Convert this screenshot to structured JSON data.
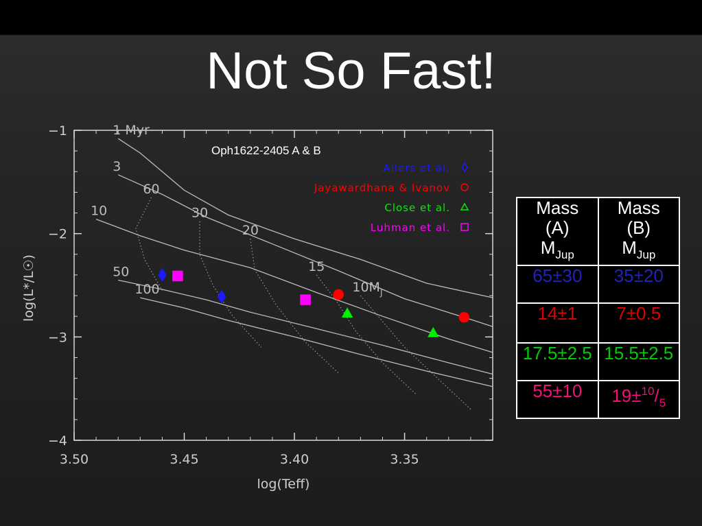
{
  "slide": {
    "title": "Not So Fast!"
  },
  "chart_data": {
    "type": "scatter",
    "title": "Oph1622-2405 A & B",
    "xlabel": "log(Teff)",
    "ylabel": "log(L*/L☉)",
    "xlim": [
      3.5,
      3.31
    ],
    "ylim": [
      -1,
      -4
    ],
    "x_ticks": [
      "3.50",
      "3.45",
      "3.40",
      "3.35"
    ],
    "y_ticks": [
      "−1",
      "−2",
      "−3",
      "−4"
    ],
    "legend_position": "top-right",
    "series": [
      {
        "name": "Allers et al.",
        "color": "#1a1aff",
        "marker": "diamond",
        "points": [
          [
            3.46,
            -2.4
          ],
          [
            3.433,
            -2.61
          ]
        ]
      },
      {
        "name": "Jayawardhana & Ivanov",
        "color": "#ff0000",
        "marker": "circle",
        "points": [
          [
            3.38,
            -2.59
          ],
          [
            3.323,
            -2.81
          ]
        ]
      },
      {
        "name": "Close et al.",
        "color": "#00ee00",
        "marker": "triangle",
        "points": [
          [
            3.376,
            -2.77
          ],
          [
            3.337,
            -2.96
          ]
        ]
      },
      {
        "name": "Luhman et al.",
        "color": "#ff00ff",
        "marker": "square",
        "points": [
          [
            3.453,
            -2.41
          ],
          [
            3.395,
            -2.64
          ]
        ]
      }
    ],
    "isochrones": [
      {
        "label": "1  Myr",
        "points": [
          [
            3.48,
            -1.08
          ],
          [
            3.47,
            -1.22
          ],
          [
            3.45,
            -1.58
          ],
          [
            3.43,
            -1.82
          ],
          [
            3.4,
            -2.05
          ],
          [
            3.37,
            -2.25
          ],
          [
            3.34,
            -2.48
          ],
          [
            3.31,
            -2.62
          ]
        ]
      },
      {
        "label": "3",
        "points": [
          [
            3.48,
            -1.43
          ],
          [
            3.46,
            -1.62
          ],
          [
            3.44,
            -1.84
          ],
          [
            3.41,
            -2.1
          ],
          [
            3.38,
            -2.36
          ],
          [
            3.35,
            -2.63
          ],
          [
            3.32,
            -2.83
          ],
          [
            3.31,
            -2.9
          ]
        ]
      },
      {
        "label": "10",
        "points": [
          [
            3.49,
            -1.86
          ],
          [
            3.47,
            -2.02
          ],
          [
            3.45,
            -2.16
          ],
          [
            3.42,
            -2.33
          ],
          [
            3.39,
            -2.57
          ],
          [
            3.36,
            -2.8
          ],
          [
            3.33,
            -3.02
          ],
          [
            3.31,
            -3.15
          ]
        ]
      },
      {
        "label": "50",
        "points": [
          [
            3.48,
            -2.45
          ],
          [
            3.46,
            -2.54
          ],
          [
            3.44,
            -2.64
          ],
          [
            3.42,
            -2.76
          ],
          [
            3.39,
            -2.92
          ],
          [
            3.36,
            -3.08
          ],
          [
            3.33,
            -3.25
          ],
          [
            3.31,
            -3.36
          ]
        ]
      },
      {
        "label": "100",
        "points": [
          [
            3.47,
            -2.62
          ],
          [
            3.45,
            -2.72
          ],
          [
            3.43,
            -2.84
          ],
          [
            3.4,
            -3.0
          ],
          [
            3.37,
            -3.17
          ],
          [
            3.34,
            -3.33
          ],
          [
            3.31,
            -3.48
          ]
        ]
      }
    ],
    "mass_tracks": [
      {
        "label": "60",
        "points": [
          [
            3.465,
            -1.65
          ],
          [
            3.472,
            -1.95
          ],
          [
            3.468,
            -2.25
          ],
          [
            3.46,
            -2.55
          ]
        ]
      },
      {
        "label": "30",
        "points": [
          [
            3.443,
            -1.88
          ],
          [
            3.443,
            -2.2
          ],
          [
            3.437,
            -2.5
          ],
          [
            3.428,
            -2.8
          ],
          [
            3.415,
            -3.1
          ]
        ]
      },
      {
        "label": "20",
        "points": [
          [
            3.42,
            -2.05
          ],
          [
            3.418,
            -2.35
          ],
          [
            3.408,
            -2.7
          ],
          [
            3.395,
            -3.05
          ],
          [
            3.38,
            -3.35
          ]
        ]
      },
      {
        "label": "15",
        "points": [
          [
            3.39,
            -2.4
          ],
          [
            3.381,
            -2.65
          ],
          [
            3.372,
            -2.95
          ],
          [
            3.36,
            -3.25
          ],
          [
            3.345,
            -3.55
          ]
        ]
      },
      {
        "label": "10M",
        "subscript": "J",
        "points": [
          [
            3.37,
            -2.6
          ],
          [
            3.36,
            -2.85
          ],
          [
            3.35,
            -3.1
          ],
          [
            3.335,
            -3.4
          ],
          [
            3.32,
            -3.7
          ]
        ]
      }
    ]
  },
  "table": {
    "header": [
      {
        "l1": "Mass",
        "l2": "(A)",
        "l3": "M",
        "sub": "Jup"
      },
      {
        "l1": "Mass",
        "l2": "(B)",
        "l3": "M",
        "sub": "Jup"
      }
    ],
    "rows": [
      {
        "color": "#2222bb",
        "a": "65±30",
        "b": "35±20"
      },
      {
        "color": "#dd0000",
        "a": "14±1",
        "b": "7±0.5"
      },
      {
        "color": "#00cc00",
        "a": "17.5±2.5",
        "b": "15.5±2.5"
      },
      {
        "color": "#ee1177",
        "a": "55±10",
        "b_main": "19±",
        "b_sup": "10",
        "b_slash": "/",
        "b_sub": "5"
      }
    ]
  }
}
